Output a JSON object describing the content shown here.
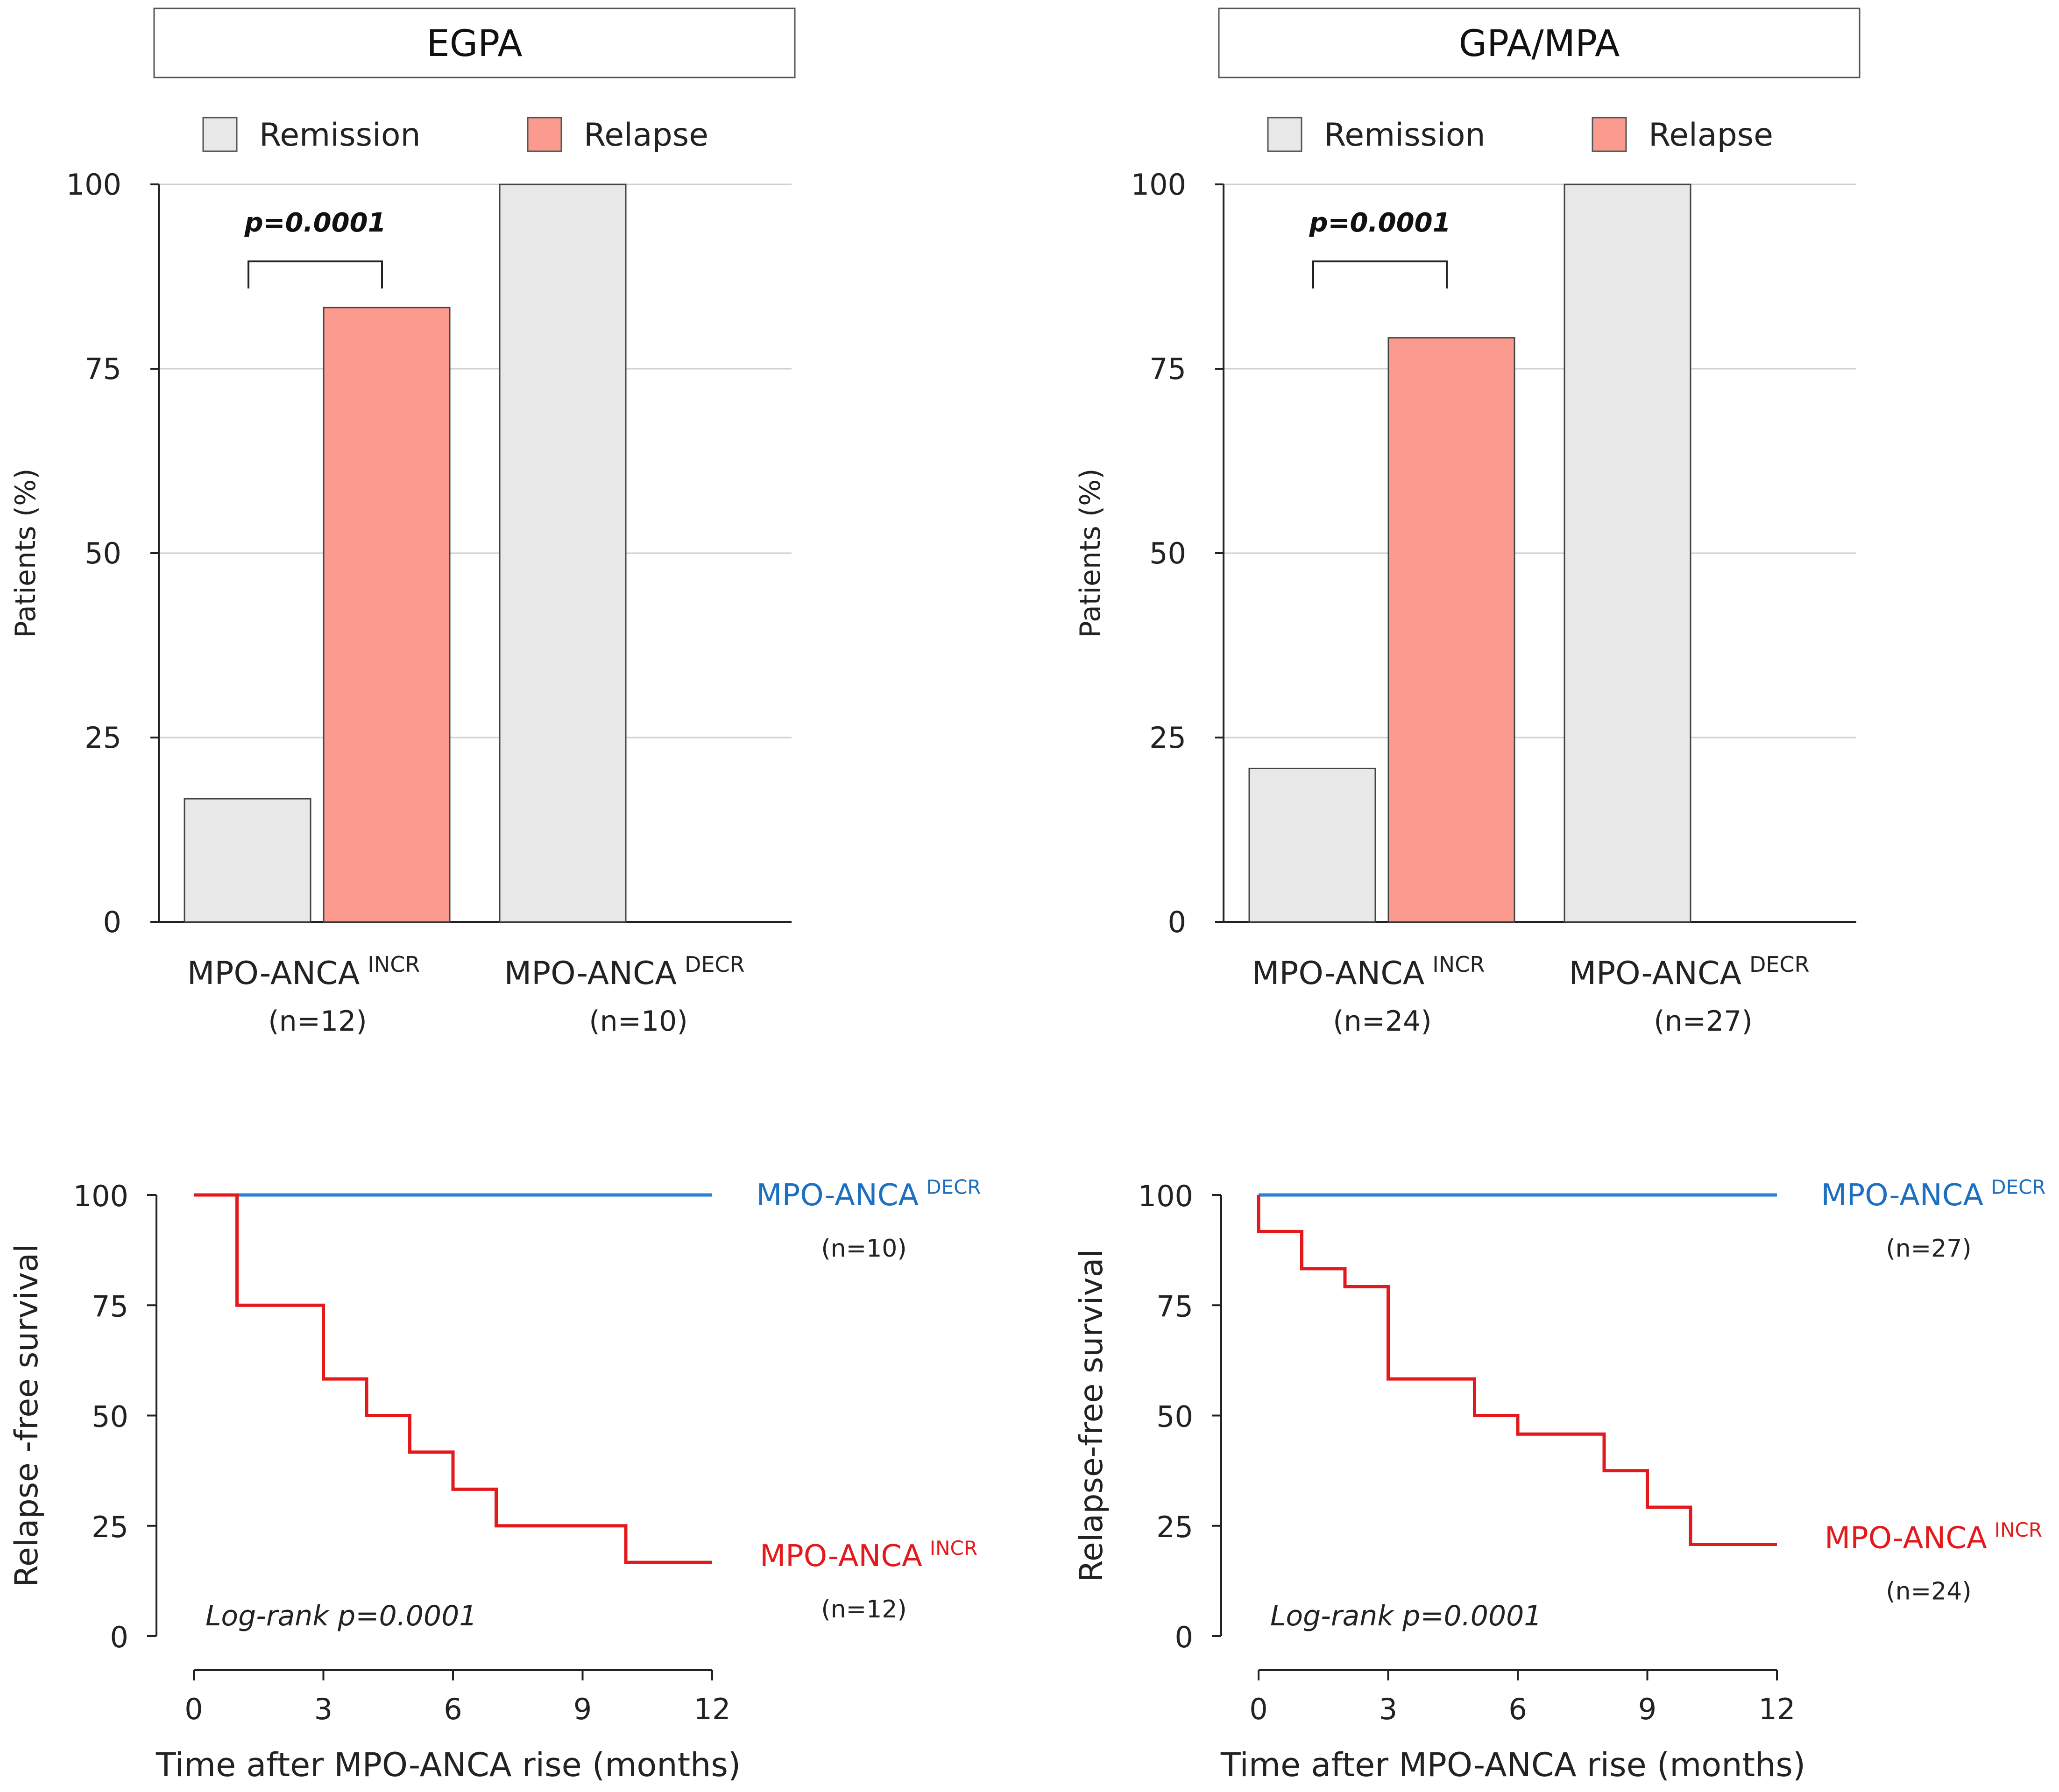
{
  "colors": {
    "remission": "#e8e8e8",
    "relapse": "#fb9a8f",
    "decr_line": "#2b7fd8",
    "incr_line": "#e3191c",
    "decr_label": "#1d6fbf",
    "incr_label": "#e3191c",
    "grid": "#cfcfcf",
    "axis": "#222222"
  },
  "chart_data": [
    {
      "type": "bar",
      "title": "EGPA",
      "legend": [
        "Remission",
        "Relapse"
      ],
      "ylabel": "Patients (%)",
      "ylim": [
        0,
        100
      ],
      "yticks": [
        "0",
        "25",
        "50",
        "75",
        "100"
      ],
      "groups": [
        {
          "name": "MPO-ANCA",
          "sup": "INCR",
          "n": "(n=12)"
        },
        {
          "name": "MPO-ANCA",
          "sup": "DECR",
          "n": "(n=10)"
        }
      ],
      "series": [
        {
          "name": "Remission",
          "values": [
            16.7,
            100
          ]
        },
        {
          "name": "Relapse",
          "values": [
            83.3,
            0
          ]
        }
      ],
      "annotation": "p=0.0001"
    },
    {
      "type": "bar",
      "title": "GPA/MPA",
      "legend": [
        "Remission",
        "Relapse"
      ],
      "ylabel": "Patients (%)",
      "ylim": [
        0,
        100
      ],
      "yticks": [
        "0",
        "25",
        "50",
        "75",
        "100"
      ],
      "groups": [
        {
          "name": "MPO-ANCA",
          "sup": "INCR",
          "n": "(n=24)"
        },
        {
          "name": "MPO-ANCA",
          "sup": "DECR",
          "n": "(n=27)"
        }
      ],
      "series": [
        {
          "name": "Remission",
          "values": [
            20.8,
            100
          ]
        },
        {
          "name": "Relapse",
          "values": [
            79.2,
            0
          ]
        }
      ],
      "annotation": "p=0.0001"
    },
    {
      "type": "line",
      "ylabel": "Relapse -free survival",
      "xlabel": "Time after MPO-ANCA rise (months)",
      "xlim": [
        0,
        12
      ],
      "ylim": [
        0,
        100
      ],
      "xticks": [
        "0",
        "3",
        "6",
        "9",
        "12"
      ],
      "yticks": [
        "0",
        "25",
        "50",
        "75",
        "100"
      ],
      "annotation": "Log-rank p=0.0001",
      "series": [
        {
          "name": "MPO-ANCA",
          "sup": "DECR",
          "n": "(n=10)",
          "steps": [
            [
              0,
              100
            ],
            [
              12,
              100
            ]
          ]
        },
        {
          "name": "MPO-ANCA",
          "sup": "INCR",
          "n": "(n=12)",
          "steps": [
            [
              0,
              100
            ],
            [
              1,
              75
            ],
            [
              3,
              58.3
            ],
            [
              4,
              50
            ],
            [
              5,
              41.7
            ],
            [
              6,
              33.3
            ],
            [
              7,
              25
            ],
            [
              10,
              16.7
            ],
            [
              12,
              16.7
            ]
          ]
        }
      ]
    },
    {
      "type": "line",
      "ylabel": "Relapse-free survival",
      "xlabel": "Time after MPO-ANCA rise (months)",
      "xlim": [
        0,
        12
      ],
      "ylim": [
        0,
        100
      ],
      "xticks": [
        "0",
        "3",
        "6",
        "9",
        "12"
      ],
      "yticks": [
        "0",
        "25",
        "50",
        "75",
        "100"
      ],
      "annotation": "Log-rank p=0.0001",
      "series": [
        {
          "name": "MPO-ANCA",
          "sup": "DECR",
          "n": "(n=27)",
          "steps": [
            [
              0,
              100
            ],
            [
              12,
              100
            ]
          ]
        },
        {
          "name": "MPO-ANCA",
          "sup": "INCR",
          "n": "(n=24)",
          "steps": [
            [
              0,
              100
            ],
            [
              0,
              91.7
            ],
            [
              1,
              83.3
            ],
            [
              2,
              79.2
            ],
            [
              3,
              58.3
            ],
            [
              5,
              50
            ],
            [
              6,
              45.8
            ],
            [
              8,
              37.5
            ],
            [
              9,
              29.2
            ],
            [
              10,
              20.8
            ],
            [
              12,
              20.8
            ]
          ]
        }
      ]
    }
  ]
}
